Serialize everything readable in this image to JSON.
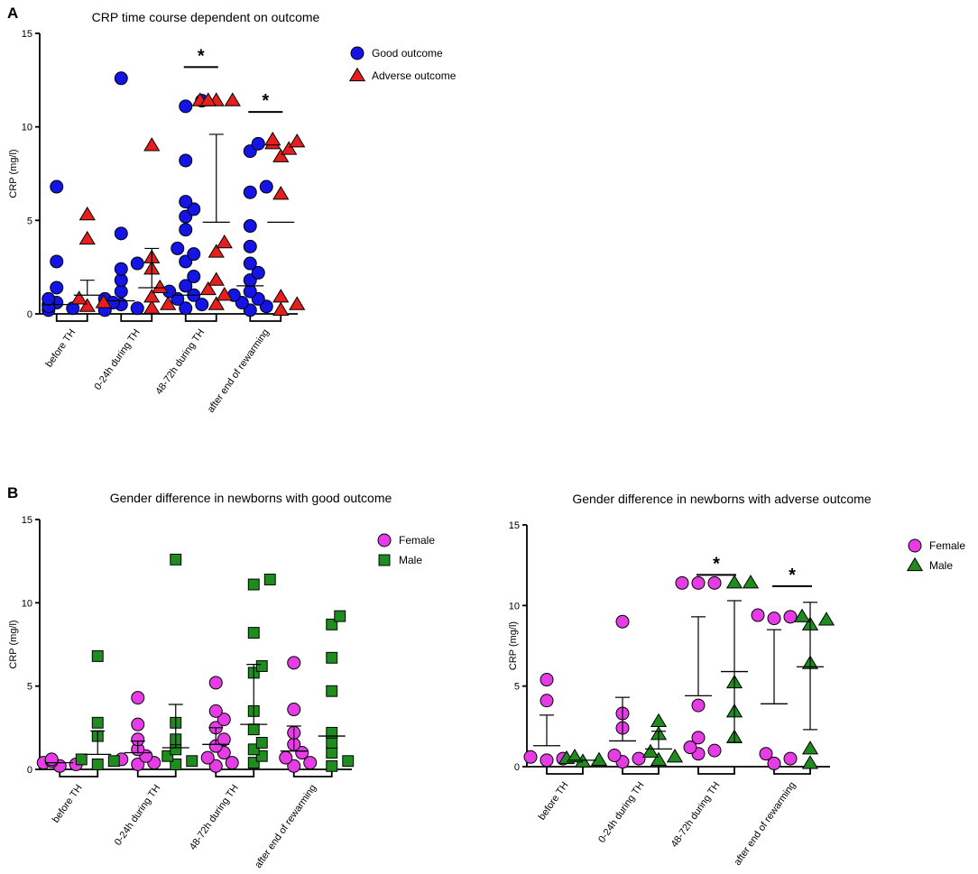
{
  "panels": [
    {
      "letter": "A"
    },
    {
      "letter": "B"
    }
  ],
  "chart_data": [
    {
      "id": "chartA",
      "type": "scatter",
      "title": "CRP time course dependent on outcome",
      "xlabel": "",
      "ylabel": "CRP (mg/l)",
      "ylim": [
        0,
        15
      ],
      "yticks": [
        0,
        5,
        10,
        15
      ],
      "categories": [
        "before TH",
        "0-24h during TH",
        "48-72h during TH",
        "after end of rewarming"
      ],
      "legend_position": "top-right",
      "series": [
        {
          "name": "Good outcome",
          "marker": "circle",
          "color": "#1414e6",
          "points": [
            [
              0.6,
              0.3,
              0.2,
              0.5,
              0.4,
              0.8,
              1.4,
              2.8,
              6.8
            ],
            [
              0.5,
              0.3,
              0.2,
              0.8,
              0.6,
              1.2,
              1.8,
              2.4,
              2.7,
              4.3,
              12.6
            ],
            [
              0.3,
              0.5,
              0.8,
              1.0,
              1.2,
              1.5,
              2.0,
              2.8,
              3.2,
              3.5,
              4.5,
              5.2,
              5.6,
              6.0,
              8.2,
              11.1,
              11.4
            ],
            [
              0.2,
              0.4,
              0.6,
              0.8,
              1.0,
              1.2,
              1.8,
              2.2,
              2.7,
              3.6,
              4.7,
              6.5,
              6.8,
              8.7,
              9.1
            ]
          ],
          "mean": [
            0.5,
            0.7,
            1.0,
            1.5
          ],
          "sd_upper": [
            null,
            null,
            null,
            null
          ]
        },
        {
          "name": "Adverse outcome",
          "marker": "triangle",
          "color": "#e61e1e",
          "points": [
            [
              0.4,
              0.6,
              0.8,
              4.0,
              5.3
            ],
            [
              0.3,
              0.5,
              0.9,
              1.4,
              2.4,
              3.0,
              9.0
            ],
            [
              0.5,
              1.0,
              1.3,
              1.8,
              3.3,
              3.8,
              11.4,
              11.4,
              11.4,
              11.4
            ],
            [
              0.2,
              0.5,
              0.9,
              6.4,
              8.4,
              8.8,
              9.1,
              9.2,
              9.3
            ]
          ],
          "mean": [
            1.0,
            1.4,
            4.9,
            4.9
          ],
          "sd_upper": [
            1.8,
            3.5,
            9.6,
            null
          ]
        }
      ],
      "significance": [
        {
          "category": 2,
          "y": 13.2,
          "label": "*"
        },
        {
          "category": 3,
          "y": 10.8,
          "label": "*"
        }
      ]
    },
    {
      "id": "chartB1",
      "type": "scatter",
      "title": "Gender difference in newborns with good outcome",
      "xlabel": "",
      "ylabel": "CRP (mg/l)",
      "ylim": [
        0,
        15
      ],
      "yticks": [
        0,
        5,
        10,
        15
      ],
      "categories": [
        "before TH",
        "0-24h during TH",
        "48-72h during TH",
        "after end of rewarming"
      ],
      "legend_position": "top-right",
      "series": [
        {
          "name": "Female",
          "marker": "circle",
          "color": "#e63ce6",
          "points": [
            [
              0.2,
              0.3,
              0.4,
              0.5,
              0.5,
              0.6
            ],
            [
              0.3,
              0.4,
              0.6,
              0.8,
              1.2,
              1.8,
              2.7,
              4.3
            ],
            [
              0.2,
              0.4,
              0.7,
              1.0,
              1.4,
              1.8,
              2.5,
              3.0,
              3.5,
              5.2
            ],
            [
              0.2,
              0.4,
              0.7,
              1.0,
              1.5,
              2.2,
              3.6,
              6.4
            ]
          ],
          "mean": [
            0.4,
            1.0,
            1.5,
            1.1
          ],
          "sd_upper": [
            null,
            1.7,
            2.5,
            2.6
          ]
        },
        {
          "name": "Male",
          "marker": "square",
          "color": "#1e8c1e",
          "points": [
            [
              0.3,
              0.5,
              0.6,
              2.0,
              2.8,
              6.8
            ],
            [
              0.3,
              0.5,
              0.8,
              1.2,
              1.8,
              2.8,
              12.6
            ],
            [
              0.4,
              0.8,
              1.2,
              1.6,
              2.4,
              3.5,
              5.8,
              6.2,
              8.2,
              11.1,
              11.4
            ],
            [
              0.2,
              0.5,
              1.0,
              1.6,
              2.2,
              4.7,
              6.7,
              8.7,
              9.2
            ]
          ],
          "mean": [
            0.9,
            1.3,
            2.7,
            2.0
          ],
          "sd_upper": [
            2.3,
            3.9,
            6.3,
            null
          ]
        }
      ]
    },
    {
      "id": "chartB2",
      "type": "scatter",
      "title": "Gender difference in newborns with adverse outcome",
      "xlabel": "",
      "ylabel": "CRP (mg/l)",
      "ylim": [
        0,
        15
      ],
      "yticks": [
        0,
        5,
        10,
        15
      ],
      "categories": [
        "before TH",
        "0-24h during TH",
        "48-72h during TH",
        "after end of rewarming"
      ],
      "legend_position": "top-right",
      "series": [
        {
          "name": "Female",
          "marker": "circle",
          "color": "#e63ce6",
          "points": [
            [
              0.4,
              0.5,
              0.6,
              4.1,
              5.4
            ],
            [
              0.3,
              0.5,
              0.7,
              2.4,
              3.3,
              9.0
            ],
            [
              0.8,
              1.0,
              1.2,
              1.8,
              3.8,
              11.4,
              11.4,
              11.4
            ],
            [
              0.2,
              0.5,
              0.8,
              9.2,
              9.3,
              9.4
            ]
          ],
          "mean": [
            1.3,
            1.6,
            4.4,
            3.9
          ],
          "sd_upper": [
            3.2,
            4.3,
            9.3,
            8.5
          ]
        },
        {
          "name": "Male",
          "marker": "triangle",
          "color": "#1e8c1e",
          "points": [
            [
              0.3,
              0.4,
              0.5,
              0.6
            ],
            [
              0.4,
              0.6,
              0.9,
              2.0,
              2.8
            ],
            [
              1.8,
              3.4,
              5.2,
              11.4,
              11.4
            ],
            [
              0.2,
              1.1,
              6.4,
              8.8,
              9.1,
              9.3
            ]
          ],
          "mean": [
            0.4,
            1.1,
            5.9,
            6.2
          ],
          "sd_upper": [
            null,
            2.2,
            10.3,
            10.2
          ],
          "sd_lower": [
            null,
            null,
            1.5,
            2.3
          ]
        }
      ],
      "significance": [
        {
          "category": 2,
          "y": 11.9,
          "label": "*"
        },
        {
          "category": 3,
          "y": 11.2,
          "label": "*"
        }
      ]
    }
  ]
}
